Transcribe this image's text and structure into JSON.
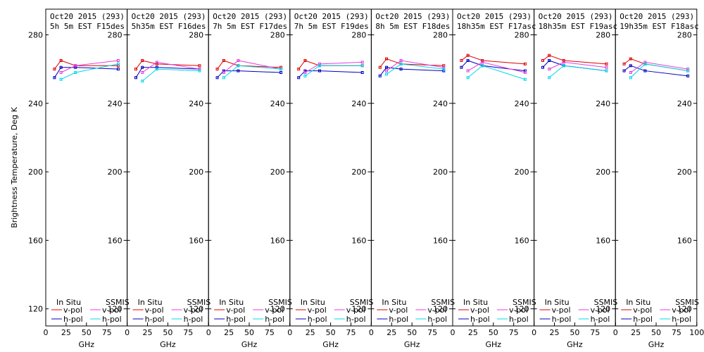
{
  "ylabel": "Brightness Temperature, Deg K",
  "xlabel": "GHz",
  "legend": {
    "in_situ": "In Situ",
    "ssmis": "SSMIS",
    "v_pol": "v-pol",
    "h_pol": "h-pol"
  },
  "colors": {
    "insitu_v": "#e00000",
    "insitu_h": "#0000c0",
    "ssmis_v": "#e040e0",
    "ssmis_h": "#00d8e8",
    "axis": "#000000"
  },
  "chart_data": {
    "type": "line",
    "xlim": [
      0,
      100
    ],
    "ylim": [
      110,
      295
    ],
    "yticks": [
      120,
      160,
      200,
      240,
      280
    ],
    "xticks": [
      0,
      25,
      50,
      75,
      100
    ],
    "xtick_labels": [
      "0",
      "25",
      "50",
      "75",
      "100"
    ],
    "ytick_labels": [
      "120",
      "160",
      "200",
      "240",
      "280"
    ],
    "freq": [
      10.7,
      18.7,
      36.5,
      89
    ],
    "panels": [
      {
        "title1": "Oct20 2015 (293)",
        "title2": "5h 5m  EST F15des",
        "insitu_v": [
          260,
          265,
          262,
          262
        ],
        "insitu_h": [
          255,
          261,
          261,
          260
        ],
        "ssmis_v": [
          258,
          262,
          265
        ],
        "ssmis_h": [
          254,
          258,
          263
        ]
      },
      {
        "title1": "Oct20 2015 (293)",
        "title2": "5h35m  EST F16des",
        "insitu_v": [
          260,
          265,
          263,
          262
        ],
        "insitu_h": [
          255,
          261,
          261,
          260
        ],
        "ssmis_v": [
          258,
          264,
          260
        ],
        "ssmis_h": [
          253,
          260,
          259
        ]
      },
      {
        "title1": "Oct20 2015 (293)",
        "title2": "7h 5m  EST F17des",
        "insitu_v": [
          260,
          265,
          262,
          261
        ],
        "insitu_h": [
          255,
          259,
          259,
          258
        ],
        "ssmis_v": [
          258,
          265,
          260
        ],
        "ssmis_h": [
          255,
          262,
          260
        ]
      },
      {
        "title1": "Oct20 2015 (293)",
        "title2": "7h 5m  EST F19des",
        "insitu_v": [
          260,
          265,
          262,
          262
        ],
        "insitu_h": [
          255,
          259,
          259,
          258
        ],
        "ssmis_v": [
          258,
          263,
          264
        ],
        "ssmis_h": [
          256,
          262,
          262
        ]
      },
      {
        "title1": "Oct20 2015 (293)",
        "title2": "8h 5m  EST F18des",
        "insitu_v": [
          261,
          266,
          263,
          262
        ],
        "insitu_h": [
          256,
          261,
          260,
          259
        ],
        "ssmis_v": [
          259,
          265,
          261
        ],
        "ssmis_h": [
          257,
          263,
          260
        ]
      },
      {
        "title1": "Oct20 2015 (293)",
        "title2": "18h35m  EST F17asc",
        "insitu_v": [
          265,
          268,
          265,
          263
        ],
        "insitu_h": [
          261,
          265,
          262,
          259
        ],
        "ssmis_v": [
          259,
          264,
          258
        ],
        "ssmis_h": [
          255,
          262,
          254
        ]
      },
      {
        "title1": "Oct20 2015 (293)",
        "title2": "18h35m  EST F19asc",
        "insitu_v": [
          265,
          268,
          265,
          263
        ],
        "insitu_h": [
          261,
          265,
          262,
          259
        ],
        "ssmis_v": [
          260,
          264,
          261
        ],
        "ssmis_h": [
          255,
          262,
          259
        ]
      },
      {
        "title1": "Oct20 2015 (293)",
        "title2": "19h35m  EST F18asc",
        "insitu_v": [
          263,
          266,
          263,
          259
        ],
        "insitu_h": [
          259,
          262,
          259,
          256
        ],
        "ssmis_v": [
          258,
          264,
          260
        ],
        "ssmis_h": [
          255,
          263,
          259
        ]
      }
    ]
  }
}
